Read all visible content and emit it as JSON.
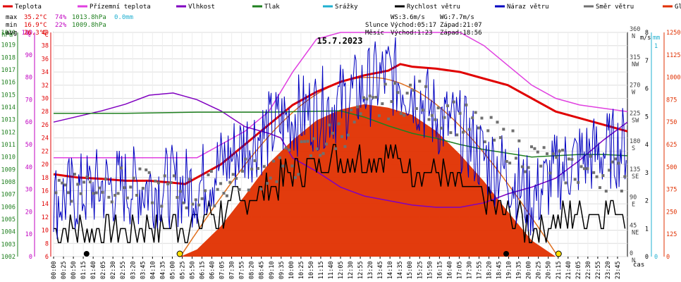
{
  "legend": [
    {
      "label": "Teplota",
      "color": "#e00000"
    },
    {
      "label": "Přízemní teplota",
      "color": "#e040e0"
    },
    {
      "label": "Vlhkost",
      "color": "#8000c0"
    },
    {
      "label": "Tlak",
      "color": "#208020"
    },
    {
      "label": "Srážky",
      "color": "#20b0d0"
    },
    {
      "label": "Rychlost větru",
      "color": "#000000"
    },
    {
      "label": "Náraz větru",
      "color": "#0000c0"
    },
    {
      "label": "Směr větru",
      "color": "#707070"
    },
    {
      "label": "Globální záření",
      "color": "#e03000"
    }
  ],
  "stats": {
    "max_label": "max",
    "max_temp": "35.2°C",
    "max_hum": "74%",
    "max_press": "1013.8hPa",
    "max_rain": "0.0mm",
    "min_label": "min",
    "min_temp": "16.9°C",
    "min_hum": "22%",
    "min_press": "1009.8hPa",
    "avg_label": "avg",
    "avg_temp": "26.3°C"
  },
  "wind_stats": {
    "ws": "WS:3.6m/s",
    "wg": "WG:7.7m/s"
  },
  "astro": {
    "sun_label": "Slunce",
    "moon_label": "Měsíc",
    "sunrise": "Východ:05:17",
    "sunset": "Západ:21:07",
    "moonrise": "Východ:1:23",
    "moonset": "Západ:18:56"
  },
  "date": "15.7.2023",
  "units": {
    "hpa": "hPa",
    "pct": "%",
    "degc": "°C",
    "ms": "m/s",
    "mm": "mm",
    "wm2": "W/m2",
    "time": "čas"
  },
  "axes": {
    "pressure": {
      "min": 1002,
      "max": 1020,
      "ticks": [
        "1002",
        "1003",
        "1004",
        "1005",
        "1006",
        "1007",
        "1008",
        "1009",
        "1010",
        "1011",
        "1012",
        "1013",
        "1014",
        "1015",
        "1016",
        "1017",
        "1018",
        "1019",
        "1020"
      ]
    },
    "humidity": {
      "min": 0,
      "max": 100,
      "ticks": [
        "0",
        "10",
        "20",
        "30",
        "40",
        "50",
        "60",
        "70",
        "80",
        "90",
        "100"
      ]
    },
    "temperature": {
      "min": 6,
      "max": 40,
      "ticks": [
        "6",
        "8",
        "10",
        "12",
        "14",
        "16",
        "18",
        "20",
        "22",
        "24",
        "26",
        "28",
        "30",
        "32",
        "34",
        "36",
        "38",
        "40"
      ]
    },
    "direction": {
      "ticks": [
        {
          "deg": "0",
          "dir": "N"
        },
        {
          "deg": "45",
          "dir": "NE"
        },
        {
          "deg": "90",
          "dir": "E"
        },
        {
          "deg": "135",
          "dir": "SE"
        },
        {
          "deg": "180",
          "dir": "S"
        },
        {
          "deg": "225",
          "dir": "SW"
        },
        {
          "deg": "270",
          "dir": "W"
        },
        {
          "deg": "315",
          "dir": "NW"
        },
        {
          "deg": "360",
          "dir": "N"
        }
      ]
    },
    "wind": {
      "ticks": [
        "0",
        "1",
        "2",
        "3",
        "4",
        "5",
        "6",
        "7",
        "8"
      ]
    },
    "rain": {
      "ticks": [
        "0",
        "1"
      ]
    },
    "radiation": {
      "ticks": [
        "0",
        "125",
        "250",
        "375",
        "500",
        "625",
        "750",
        "875",
        "1000",
        "1125",
        "1250"
      ]
    },
    "time_ticks": [
      "00:00",
      "00:25",
      "00:50",
      "01:15",
      "01:40",
      "02:05",
      "02:30",
      "02:55",
      "03:20",
      "03:45",
      "04:10",
      "04:35",
      "05:00",
      "05:25",
      "05:50",
      "06:15",
      "06:40",
      "07:05",
      "07:30",
      "07:55",
      "08:20",
      "08:45",
      "09:10",
      "09:35",
      "10:00",
      "10:25",
      "10:50",
      "11:15",
      "11:40",
      "12:05",
      "12:30",
      "12:55",
      "13:20",
      "13:45",
      "14:10",
      "14:35",
      "15:00",
      "15:25",
      "15:50",
      "16:15",
      "16:40",
      "17:05",
      "17:30",
      "17:55",
      "18:20",
      "18:45",
      "19:10",
      "19:35",
      "20:00",
      "20:25",
      "20:50",
      "21:15",
      "21:40",
      "22:05",
      "22:30",
      "22:55",
      "23:20",
      "23:45"
    ]
  },
  "chart_data": {
    "type": "line",
    "x_unit": "hour",
    "series": [
      {
        "name": "Teplota",
        "unit": "°C",
        "color": "#e00000",
        "points": [
          [
            0,
            18.5
          ],
          [
            1,
            18
          ],
          [
            2,
            17.8
          ],
          [
            3,
            17.5
          ],
          [
            4,
            17.5
          ],
          [
            5,
            17.2
          ],
          [
            5.5,
            17
          ],
          [
            6,
            18
          ],
          [
            7,
            20
          ],
          [
            8,
            23
          ],
          [
            9,
            26
          ],
          [
            10,
            29
          ],
          [
            11,
            31
          ],
          [
            12,
            32.5
          ],
          [
            13,
            33.5
          ],
          [
            14,
            34.2
          ],
          [
            14.5,
            35.2
          ],
          [
            15,
            34.8
          ],
          [
            16,
            34.5
          ],
          [
            17,
            34
          ],
          [
            18,
            33
          ],
          [
            19,
            32
          ],
          [
            20,
            30
          ],
          [
            21,
            28
          ],
          [
            22,
            27
          ],
          [
            23,
            26
          ],
          [
            24,
            25
          ]
        ]
      },
      {
        "name": "Přízemní teplota",
        "unit": "°C",
        "color": "#e040e0",
        "points": [
          [
            0,
            21
          ],
          [
            3,
            21
          ],
          [
            5,
            21
          ],
          [
            6,
            21
          ],
          [
            7,
            23
          ],
          [
            8,
            25
          ],
          [
            9,
            28
          ],
          [
            10,
            34
          ],
          [
            11,
            39
          ],
          [
            12,
            40
          ],
          [
            13,
            40
          ],
          [
            14,
            40
          ],
          [
            15,
            40
          ],
          [
            16,
            40
          ],
          [
            17,
            40
          ],
          [
            18,
            38
          ],
          [
            19,
            35
          ],
          [
            20,
            32
          ],
          [
            21,
            30
          ],
          [
            22,
            29
          ],
          [
            23,
            28.5
          ],
          [
            24,
            28
          ]
        ]
      },
      {
        "name": "Vlhkost",
        "unit": "%",
        "color": "#8000c0",
        "points": [
          [
            0,
            60
          ],
          [
            2,
            65
          ],
          [
            3,
            68
          ],
          [
            4,
            72
          ],
          [
            5,
            73
          ],
          [
            6,
            70
          ],
          [
            7,
            65
          ],
          [
            8,
            58
          ],
          [
            9,
            55
          ],
          [
            9.5,
            53
          ],
          [
            10,
            44
          ],
          [
            11,
            38
          ],
          [
            12,
            31
          ],
          [
            13,
            27
          ],
          [
            14,
            25
          ],
          [
            15,
            23
          ],
          [
            16,
            22
          ],
          [
            17,
            22
          ],
          [
            18,
            24
          ],
          [
            19,
            28
          ],
          [
            20,
            31
          ],
          [
            21,
            35
          ],
          [
            22,
            43
          ],
          [
            23,
            52
          ],
          [
            24,
            60
          ]
        ]
      },
      {
        "name": "Tlak",
        "unit": "hPa",
        "color": "#208020",
        "points": [
          [
            0,
            1013.5
          ],
          [
            3,
            1013.5
          ],
          [
            6,
            1013.6
          ],
          [
            9,
            1013.6
          ],
          [
            12,
            1013.7
          ],
          [
            13,
            1013.2
          ],
          [
            14,
            1012.5
          ],
          [
            15,
            1011.9
          ],
          [
            16,
            1011.5
          ],
          [
            17,
            1011
          ],
          [
            18,
            1010.6
          ],
          [
            19,
            1010.3
          ],
          [
            20,
            1010
          ],
          [
            21,
            1010.1
          ],
          [
            22,
            1010.2
          ],
          [
            23,
            1010.2
          ],
          [
            24,
            1010.1
          ]
        ]
      },
      {
        "name": "Rychlost větru",
        "unit": "m/s",
        "color": "#000000",
        "points": [
          [
            0,
            1
          ],
          [
            2,
            1
          ],
          [
            4,
            1
          ],
          [
            6,
            1.2
          ],
          [
            8,
            2
          ],
          [
            10,
            3
          ],
          [
            12,
            3.5
          ],
          [
            14,
            3.5
          ],
          [
            16,
            3
          ],
          [
            17,
            2.5
          ],
          [
            18,
            2
          ],
          [
            19,
            1.5
          ],
          [
            20,
            1
          ],
          [
            22,
            1.5
          ],
          [
            24,
            1.8
          ]
        ]
      },
      {
        "name": "Náraz větru",
        "unit": "m/s",
        "color": "#0000c0",
        "points": [
          [
            0,
            2
          ],
          [
            2,
            2.5
          ],
          [
            4,
            2.5
          ],
          [
            6,
            2.5
          ],
          [
            8,
            4
          ],
          [
            10,
            5
          ],
          [
            12,
            5.5
          ],
          [
            13,
            6
          ],
          [
            14,
            6.5
          ],
          [
            15,
            6
          ],
          [
            16,
            5
          ],
          [
            17,
            4.5
          ],
          [
            18,
            3.5
          ],
          [
            19,
            3
          ],
          [
            20,
            2
          ],
          [
            21,
            3
          ],
          [
            22,
            3.5
          ],
          [
            24,
            4
          ]
        ]
      },
      {
        "name": "Směr větru",
        "unit": "°",
        "color": "#707070",
        "points": [
          [
            0,
            115
          ],
          [
            2,
            118
          ],
          [
            4,
            110
          ],
          [
            6,
            100
          ],
          [
            8,
            130
          ],
          [
            10,
            150
          ],
          [
            12,
            200
          ],
          [
            13,
            230
          ],
          [
            14,
            250
          ],
          [
            15,
            260
          ],
          [
            16,
            240
          ],
          [
            17,
            220
          ],
          [
            18,
            200
          ],
          [
            19,
            180
          ],
          [
            20,
            160
          ],
          [
            21,
            145
          ],
          [
            22,
            140
          ],
          [
            23,
            135
          ],
          [
            24,
            130
          ]
        ]
      },
      {
        "name": "Globální záření",
        "unit": "W/m2",
        "color": "#e03000",
        "points": [
          [
            5.3,
            0
          ],
          [
            6,
            40
          ],
          [
            7,
            170
          ],
          [
            8,
            340
          ],
          [
            9,
            520
          ],
          [
            10,
            650
          ],
          [
            11,
            760
          ],
          [
            12,
            820
          ],
          [
            13,
            850
          ],
          [
            14,
            830
          ],
          [
            15,
            790
          ],
          [
            16,
            700
          ],
          [
            17,
            570
          ],
          [
            18,
            420
          ],
          [
            19,
            250
          ],
          [
            20,
            90
          ],
          [
            21,
            0
          ]
        ]
      }
    ]
  }
}
